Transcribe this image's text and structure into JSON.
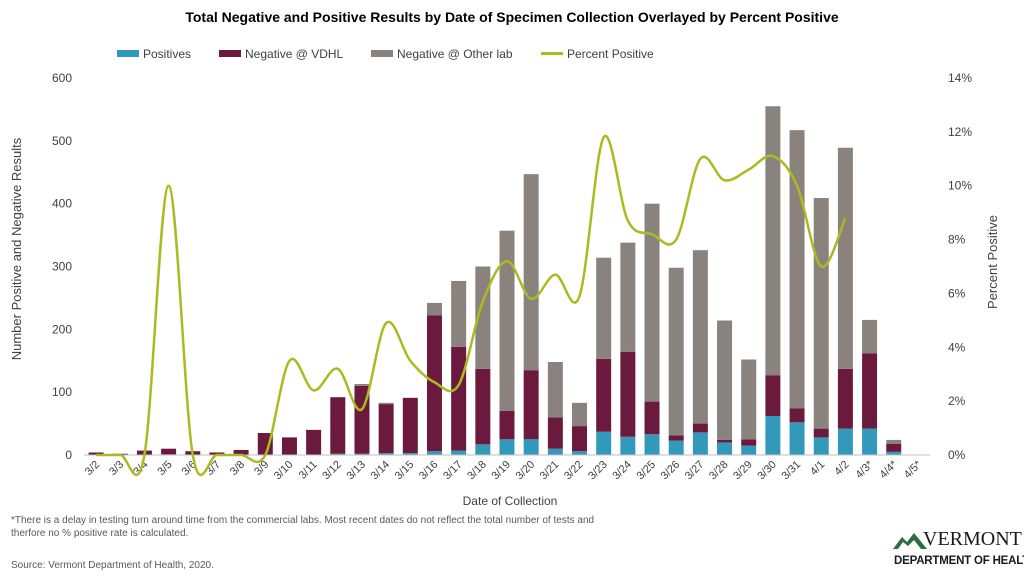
{
  "chart_data": {
    "type": "bar",
    "title": "Total Negative and Positive Results by Date of Specimen Collection Overlayed by Percent Positive",
    "xlabel": "Date of Collection",
    "ylabel": "Number Positive and Negative Results",
    "y2label": "Percent Positive",
    "stacked": true,
    "ylim": [
      0,
      600
    ],
    "yticks": [
      0,
      100,
      200,
      300,
      400,
      500,
      600
    ],
    "y2lim": [
      0,
      14
    ],
    "y2ticks": [
      "0%",
      "2%",
      "4%",
      "6%",
      "8%",
      "10%",
      "12%",
      "14%"
    ],
    "grid": false,
    "legend_position": "top",
    "categories": [
      "3/2",
      "3/3",
      "3/4",
      "3/5",
      "3/6",
      "3/7",
      "3/8",
      "3/9",
      "3/10",
      "3/11",
      "3/12",
      "3/13",
      "3/14",
      "3/15",
      "3/16",
      "3/17",
      "3/18",
      "3/19",
      "3/20",
      "3/21",
      "3/22",
      "3/23",
      "3/24",
      "3/25",
      "3/26",
      "3/27",
      "3/28",
      "3/29",
      "3/30",
      "3/31",
      "4/1",
      "4/2",
      "4/3*",
      "4/4*",
      "4/5*"
    ],
    "series": [
      {
        "name": "Positives",
        "color": "#3399bb",
        "axis": "left",
        "values": [
          0,
          0,
          0,
          1,
          0,
          0,
          0,
          0,
          0,
          0,
          2,
          2,
          3,
          3,
          6,
          7,
          17,
          25,
          25,
          10,
          6,
          37,
          29,
          33,
          23,
          36,
          20,
          15,
          62,
          52,
          28,
          42,
          42,
          5,
          0
        ]
      },
      {
        "name": "Negative @ VDHL",
        "color": "#6b1a3d",
        "axis": "left",
        "values": [
          4,
          2,
          7,
          9,
          6,
          4,
          8,
          35,
          28,
          40,
          90,
          108,
          78,
          88,
          216,
          165,
          120,
          45,
          110,
          50,
          40,
          116,
          135,
          52,
          8,
          14,
          4,
          10,
          65,
          22,
          14,
          95,
          120,
          13,
          0
        ]
      },
      {
        "name": "Negative @ Other lab",
        "color": "#8a827c",
        "axis": "left",
        "values": [
          0,
          0,
          0,
          0,
          0,
          0,
          0,
          0,
          0,
          0,
          0,
          3,
          2,
          0,
          20,
          105,
          163,
          287,
          312,
          88,
          37,
          161,
          174,
          315,
          267,
          276,
          190,
          127,
          428,
          443,
          367,
          352,
          53,
          6,
          0
        ]
      },
      {
        "name": "Percent Positive",
        "color": "#aabb22",
        "axis": "right",
        "type": "line",
        "values": [
          0,
          0,
          0,
          10,
          0,
          0,
          0,
          0,
          3.5,
          2.4,
          3.2,
          1.7,
          4.9,
          3.5,
          2.7,
          2.6,
          5.7,
          7.2,
          5.8,
          6.7,
          5.9,
          11.8,
          8.7,
          8.2,
          8.0,
          11.0,
          10.2,
          10.6,
          11.1,
          10.0,
          7.0,
          8.8,
          null,
          null,
          null
        ]
      }
    ]
  },
  "footnote": "*There is a delay in testing turn around time from the commercial labs. Most recent dates do not reflect the total number of tests and therfore no % positive rate is calculated.",
  "source": "Source: Vermont Department of Health, 2020.",
  "logo": {
    "name": "VERMONT",
    "dept": "DEPARTMENT OF HEALTH"
  }
}
